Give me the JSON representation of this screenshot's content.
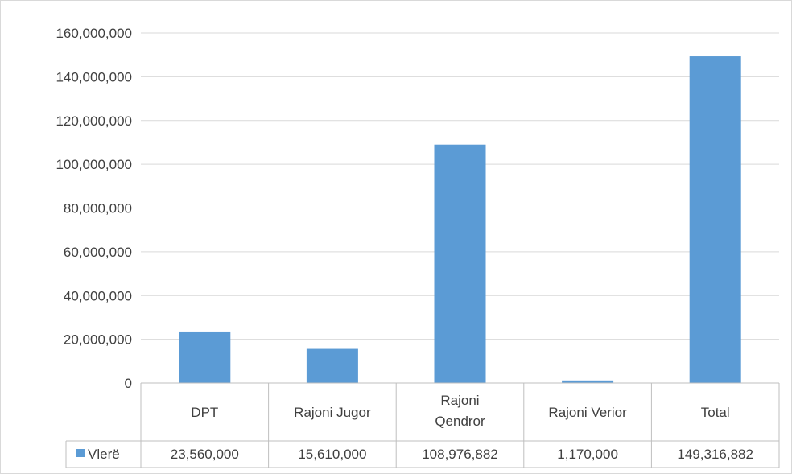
{
  "chart_data": {
    "type": "bar",
    "categories": [
      [
        "DPT"
      ],
      [
        "Rajoni Jugor"
      ],
      [
        "Rajoni",
        "Qendror"
      ],
      [
        "Rajoni Verior"
      ],
      [
        "Total"
      ]
    ],
    "series": [
      {
        "name": "Vlerë",
        "color": "#5b9bd5",
        "values": [
          23560000,
          15610000,
          108976882,
          1170000,
          149316882
        ],
        "value_labels": [
          "23,560,000",
          "15,610,000",
          "108,976,882",
          "1,170,000",
          "149,316,882"
        ]
      }
    ],
    "ylim": [
      0,
      160000000
    ],
    "y_ticks": [
      0,
      20000000,
      40000000,
      60000000,
      80000000,
      100000000,
      120000000,
      140000000,
      160000000
    ],
    "y_tick_labels": [
      "0",
      "20,000,000",
      "40,000,000",
      "60,000,000",
      "80,000,000",
      "100,000,000",
      "120,000,000",
      "140,000,000",
      "160,000,000"
    ],
    "grid": true,
    "legend": "data-table",
    "data_table": true
  }
}
